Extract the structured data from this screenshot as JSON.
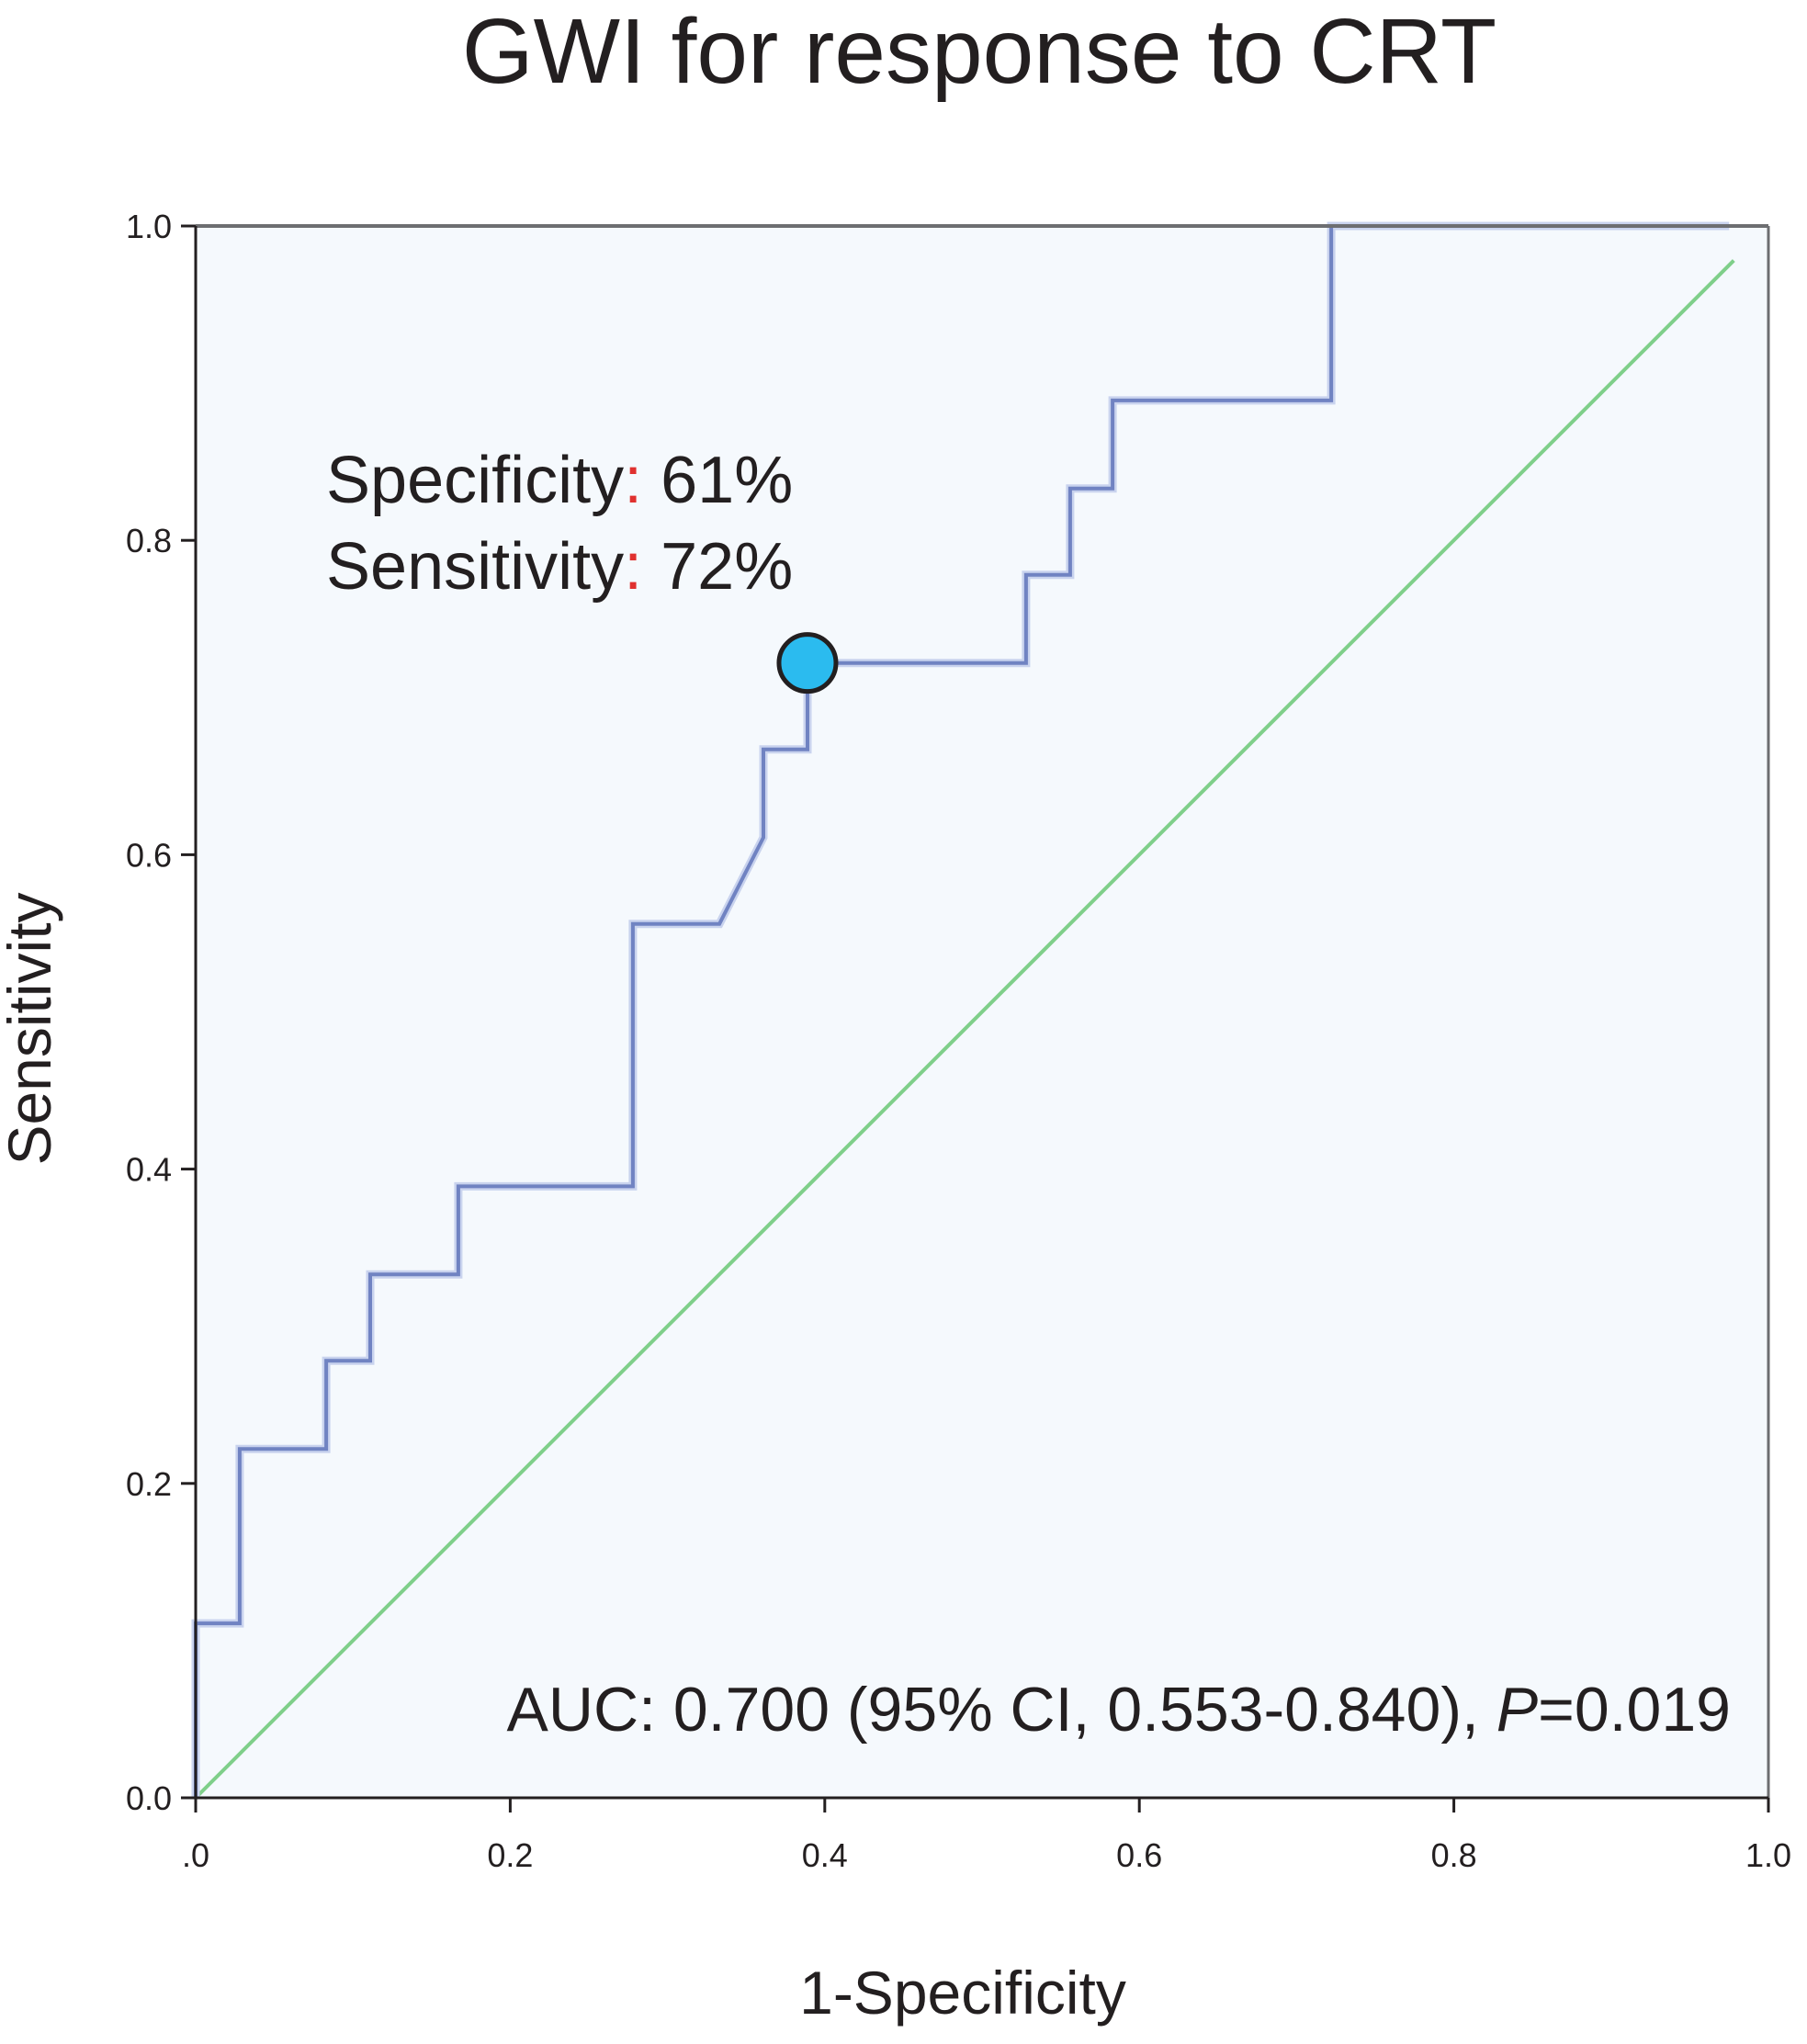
{
  "chart_data": {
    "type": "line",
    "title": "GWI for response to CRT",
    "xlabel": "1-Specificity",
    "ylabel": "Sensitivity",
    "xlim": [
      0,
      1
    ],
    "ylim": [
      0,
      1
    ],
    "x_ticks": [
      {
        "value": 0.0,
        "label": ".0"
      },
      {
        "value": 0.2,
        "label": "0.2"
      },
      {
        "value": 0.4,
        "label": "0.4"
      },
      {
        "value": 0.6,
        "label": "0.6"
      },
      {
        "value": 0.8,
        "label": "0.8"
      },
      {
        "value": 1.0,
        "label": "1.0"
      }
    ],
    "y_ticks": [
      {
        "value": 0.0,
        "label": "0.0"
      },
      {
        "value": 0.2,
        "label": "0.2"
      },
      {
        "value": 0.4,
        "label": "0.4"
      },
      {
        "value": 0.6,
        "label": "0.6"
      },
      {
        "value": 0.8,
        "label": "0.8"
      },
      {
        "value": 1.0,
        "label": "1.0"
      }
    ],
    "grid": false,
    "series": [
      {
        "color": "#7083c2",
        "x": [
          0.0,
          0.0,
          0.028,
          0.028,
          0.083,
          0.083,
          0.111,
          0.111,
          0.167,
          0.167,
          0.278,
          0.278,
          0.333,
          0.361,
          0.361,
          0.389,
          0.389,
          0.528,
          0.528,
          0.556,
          0.556,
          0.583,
          0.583,
          0.722,
          0.722,
          0.975
        ],
        "y": [
          0.0,
          0.111,
          0.111,
          0.222,
          0.222,
          0.278,
          0.278,
          0.333,
          0.333,
          0.389,
          0.389,
          0.556,
          0.556,
          0.611,
          0.667,
          0.667,
          0.722,
          0.722,
          0.778,
          0.778,
          0.833,
          0.833,
          0.889,
          0.889,
          1.0,
          1.0
        ]
      },
      {
        "color": "#7fcf8a",
        "x": [
          0.0,
          0.978
        ],
        "y": [
          0.0,
          0.978
        ]
      }
    ],
    "highlight_point": {
      "x": 0.389,
      "y": 0.722,
      "color": "#2bbbef"
    },
    "annotations": {
      "specificity_label": "Specificity",
      "specificity_value": " 61%",
      "sensitivity_label": "Sensitivity",
      "sensitivity_value": " 72%",
      "colon": ":",
      "colon_color": "#e0312f",
      "auc_prefix": "AUC: 0.700 (95% CI, 0.553-0.840), ",
      "auc_p": "P",
      "auc_suffix": "=0.019"
    },
    "colors": {
      "plot_background": "#f5f9fd",
      "frame": "#6d6e71",
      "text": "#231f20"
    }
  }
}
